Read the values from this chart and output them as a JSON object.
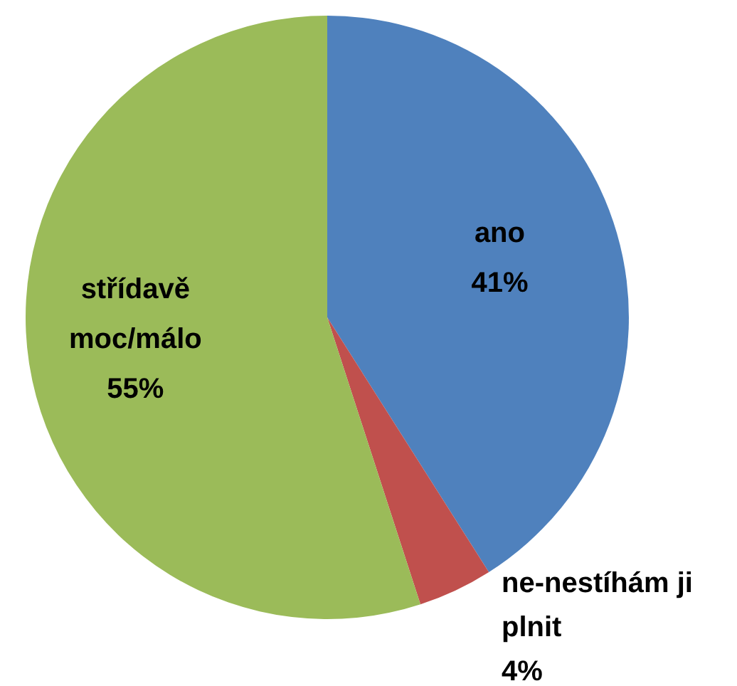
{
  "chart_data": {
    "type": "pie",
    "categories": [
      "ano",
      "ne-nestíhám ji plnit",
      "střídavě moc/málo"
    ],
    "values": [
      41,
      4,
      55
    ],
    "colors": [
      "#4f81bd",
      "#c0504d",
      "#9bbb59"
    ],
    "value_labels": [
      "41%",
      "4%",
      "55%"
    ]
  }
}
